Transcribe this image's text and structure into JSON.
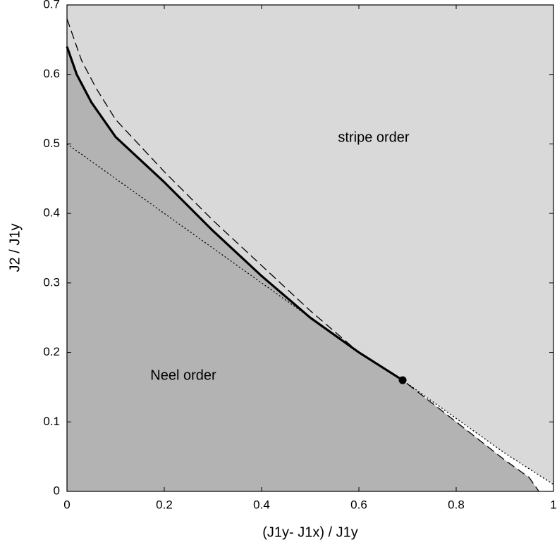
{
  "chart_data": {
    "type": "line",
    "x_label": "(J1y- J1x) / J1y",
    "y_label": "J2 / J1y",
    "annotations": [
      "stripe order",
      "Neel order"
    ],
    "fill_colors": {
      "neel": "#b3b3b3",
      "stripe": "#d9d9d9"
    },
    "xlim": [
      0,
      1
    ],
    "ylim": [
      0,
      0.7
    ],
    "xticks": [
      0,
      0.2,
      0.4,
      0.6,
      0.8,
      1
    ],
    "yticks": [
      0,
      0.1,
      0.2,
      0.3,
      0.4,
      0.5,
      0.6,
      0.7
    ],
    "series": [
      {
        "color": "#000000",
        "style": "solid",
        "x": [
          0,
          0.02,
          0.05,
          0.1,
          0.2,
          0.3,
          0.4,
          0.5,
          0.6,
          0.69
        ],
        "values": [
          0.64,
          0.6,
          0.56,
          0.51,
          0.445,
          0.375,
          0.31,
          0.25,
          0.2,
          0.16
        ]
      },
      {
        "color": "#000000",
        "style": "dashed",
        "x": [
          0,
          0.03,
          0.06,
          0.1,
          0.2,
          0.3,
          0.4,
          0.5,
          0.6,
          0.69,
          0.8,
          0.9,
          0.95,
          0.97
        ],
        "values": [
          0.68,
          0.62,
          0.58,
          0.535,
          0.46,
          0.39,
          0.325,
          0.26,
          0.2,
          0.16,
          0.1,
          0.045,
          0.02,
          0
        ]
      },
      {
        "color": "#000000",
        "style": "dotted",
        "x": [
          0,
          0.2,
          0.4,
          0.6,
          0.69,
          0.8,
          0.9,
          1
        ],
        "values": [
          0.5,
          0.4,
          0.3,
          0.2,
          0.16,
          0.105,
          0.055,
          0.01
        ]
      }
    ],
    "point": {
      "x": 0.69,
      "y": 0.16,
      "color": "#000000"
    }
  }
}
